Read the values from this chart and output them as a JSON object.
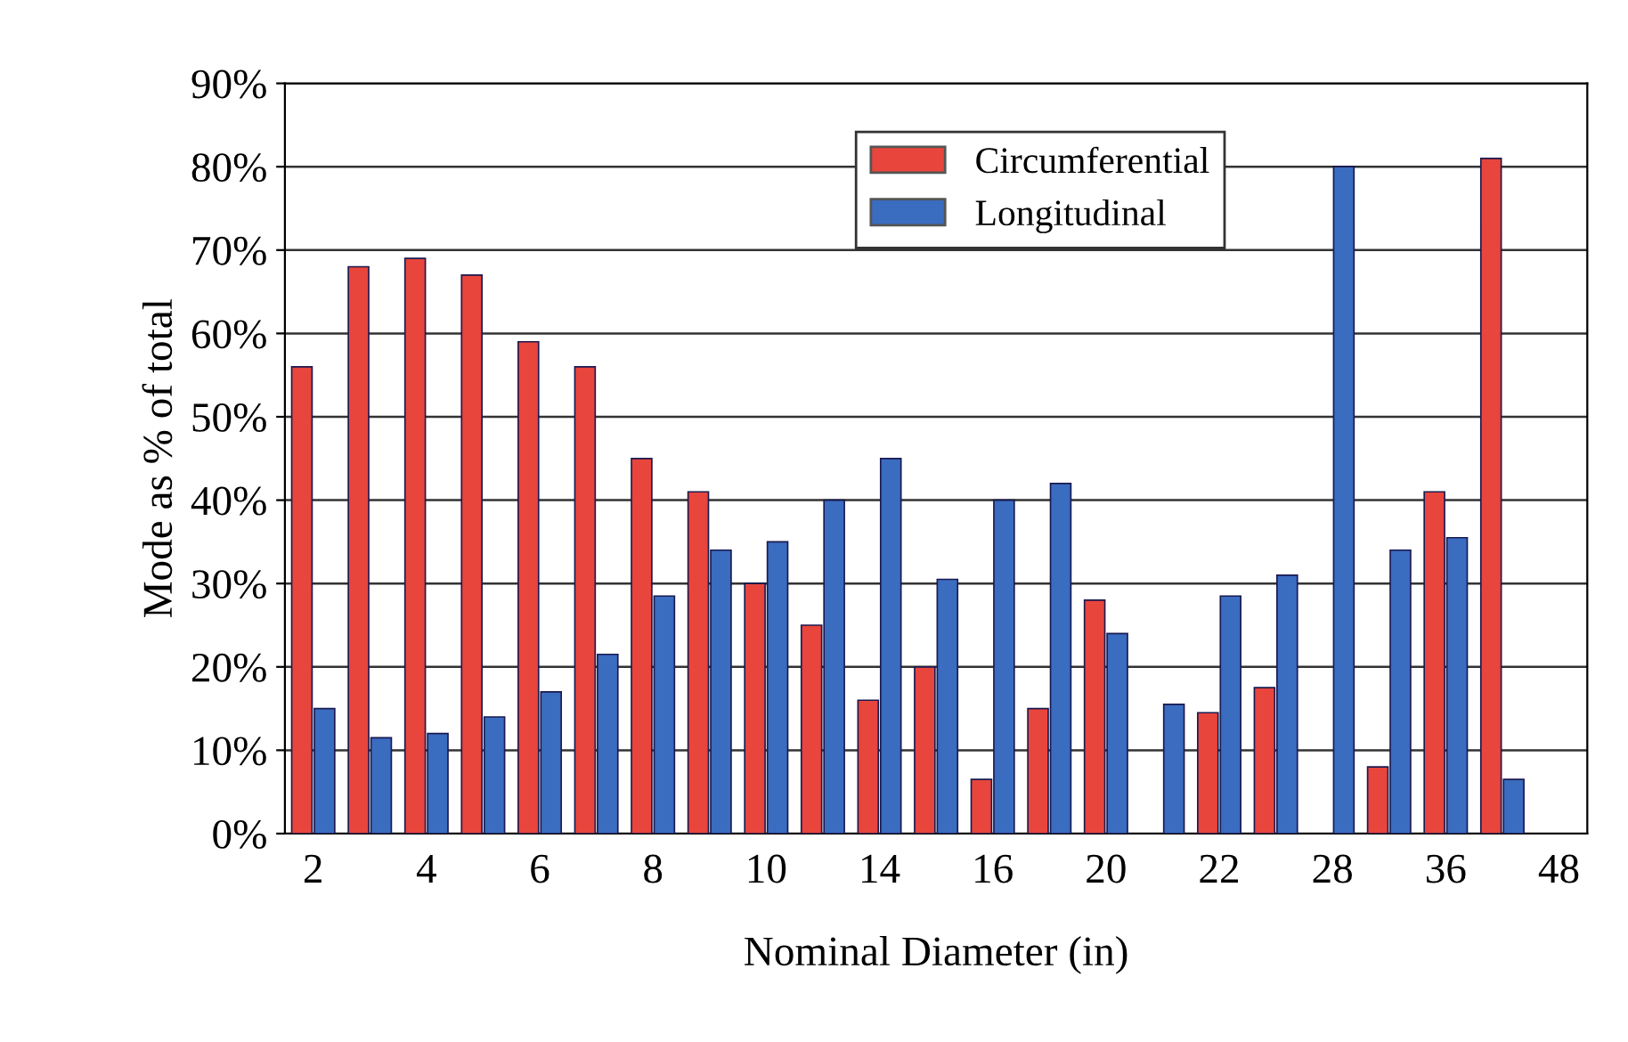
{
  "chart_data": {
    "type": "bar",
    "xlabel": "Nominal Diameter (in)",
    "ylabel": "Mode as % of total",
    "categories": [
      "2",
      null,
      "4",
      null,
      "6",
      null,
      "8",
      null,
      "10",
      null,
      "14",
      null,
      "16",
      null,
      "20",
      null,
      "22",
      null,
      "28",
      null,
      "36",
      null,
      "48"
    ],
    "series": [
      {
        "name": "Circumferential",
        "color": "#e8453c",
        "values": [
          56,
          68,
          69,
          67,
          59,
          56,
          45,
          41,
          30,
          25,
          16,
          20,
          6.5,
          15,
          28,
          0,
          14.5,
          17.5,
          0,
          8,
          41,
          81,
          0
        ]
      },
      {
        "name": "Longitudinal",
        "color": "#3a6cc0",
        "values": [
          15,
          11.5,
          12,
          14,
          17,
          21.5,
          28.5,
          34,
          35,
          40,
          45,
          30.5,
          40,
          42,
          24,
          15.5,
          28.5,
          31,
          80,
          34,
          35.5,
          6.5,
          0
        ]
      }
    ],
    "ylim": [
      0,
      90
    ],
    "yticks": [
      {
        "value": 0,
        "label": "0%"
      },
      {
        "value": 10,
        "label": "10%"
      },
      {
        "value": 20,
        "label": "20%"
      },
      {
        "value": 30,
        "label": "30%"
      },
      {
        "value": 40,
        "label": "40%"
      },
      {
        "value": 50,
        "label": "50%"
      },
      {
        "value": 60,
        "label": "60%"
      },
      {
        "value": 70,
        "label": "70%"
      },
      {
        "value": 80,
        "label": "80%"
      },
      {
        "value": 90,
        "label": "90%"
      }
    ],
    "grid": "y",
    "legend": "top"
  }
}
